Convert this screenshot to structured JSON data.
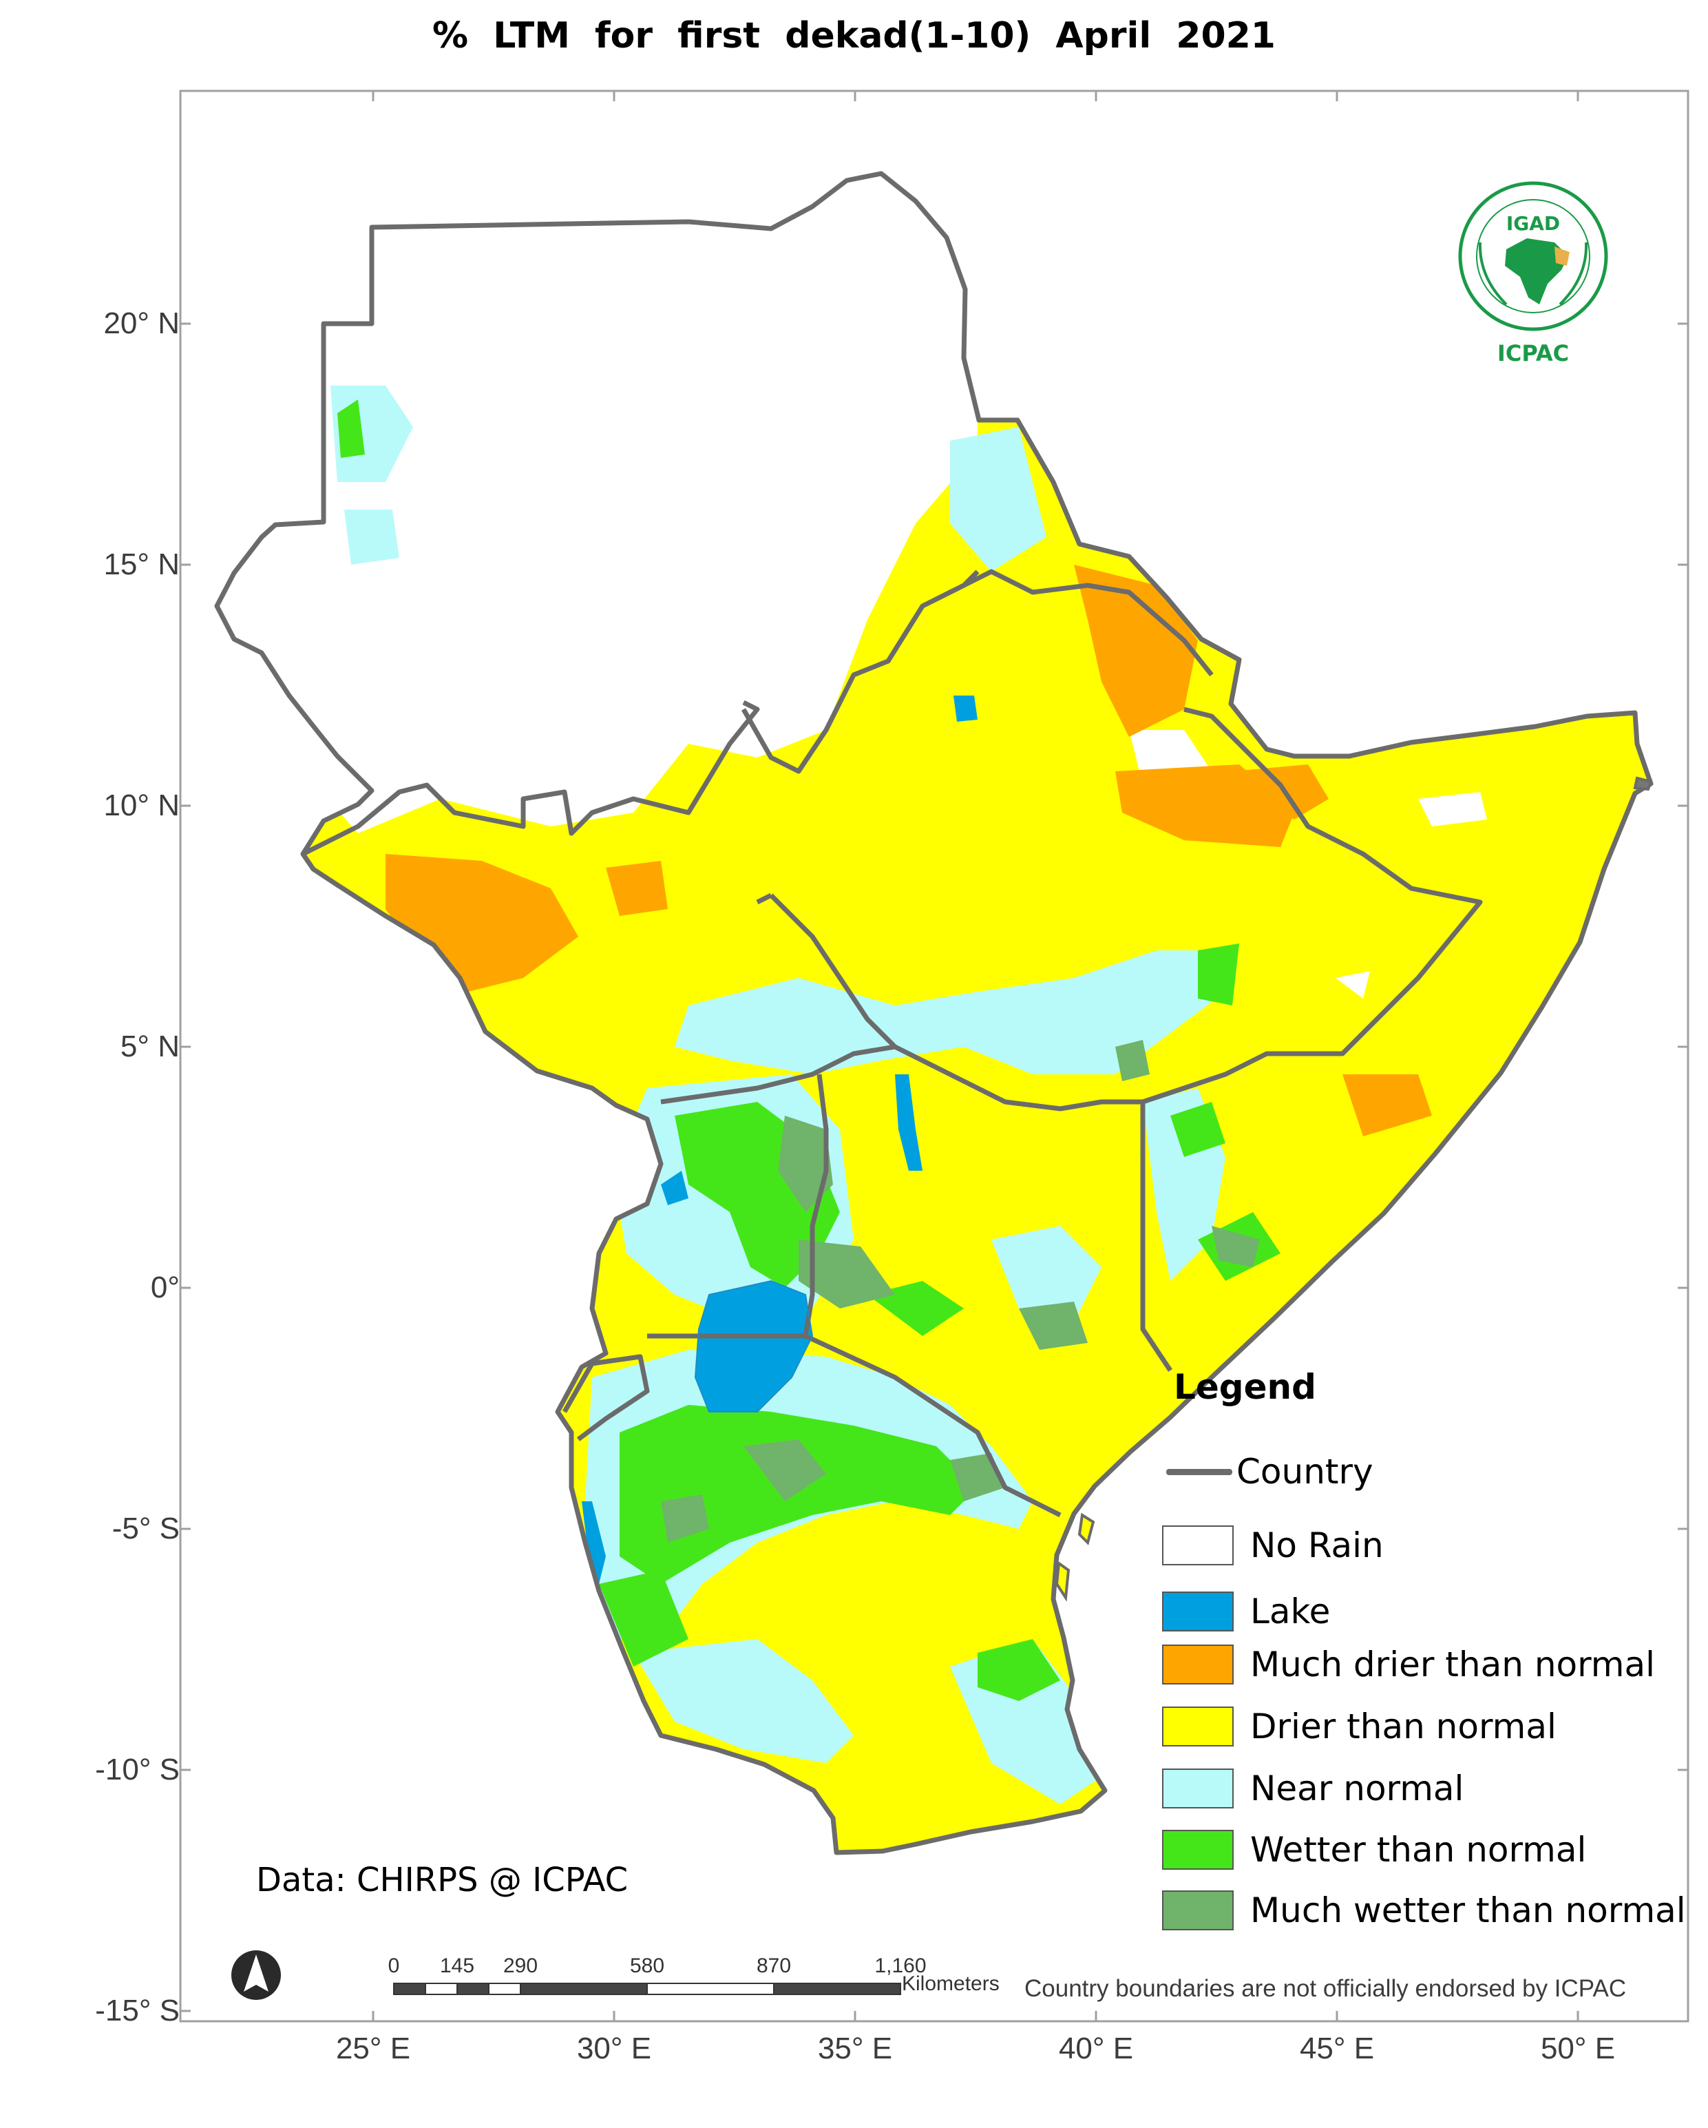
{
  "title": "% LTM  for   first  dekad(1-10)  April 2021",
  "axes": {
    "lat_labels": [
      "20° N",
      "15° N",
      "10° N",
      "5° N",
      "0°",
      "-5° S",
      "-10° S",
      "-15° S"
    ],
    "lon_labels": [
      "25° E",
      "30° E",
      "35° E",
      "40° E",
      "45° E",
      "50° E"
    ]
  },
  "legend": {
    "title": "Legend",
    "country_label": "Country",
    "classes": [
      {
        "label": "No Rain",
        "color": "#ffffff"
      },
      {
        "label": "Lake",
        "color": "#00a0e0"
      },
      {
        "label": "Much drier than normal",
        "color": "#ffa500"
      },
      {
        "label": "Drier than normal",
        "color": "#ffff00"
      },
      {
        "label": "Near normal",
        "color": "#b8fafa"
      },
      {
        "label": "Wetter than normal",
        "color": "#45e619"
      },
      {
        "label": "Much wetter than normal",
        "color": "#70b36a"
      }
    ]
  },
  "credit": "Data: CHIRPS @ ICPAC",
  "disclaimer": "Country boundaries are not officially endorsed by ICPAC",
  "scale_bar": {
    "ticks": [
      "0",
      "145",
      "290",
      "580",
      "870",
      "1,160"
    ],
    "unit": "Kilometers"
  },
  "logo": {
    "top_text": "IGAD",
    "bottom_text": "ICPAC",
    "icon": "igad-emblem-icon"
  },
  "north_arrow": "north-arrow-icon",
  "colors": {
    "border": "#6b6b6b",
    "frame": "#a0a0a0",
    "logo_green": "#1a9a48"
  }
}
